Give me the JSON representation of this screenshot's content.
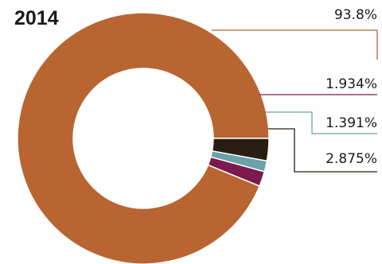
{
  "chart_data": {
    "type": "pie",
    "title": "2014",
    "donut": true,
    "start_angle_deg": 0,
    "direction": "counterclockwise",
    "slices": [
      {
        "label": "93.8%",
        "value": 93.8,
        "color": "#b86532"
      },
      {
        "label": "1.934%",
        "value": 1.934,
        "color": "#7d1a4d"
      },
      {
        "label": "1.391%",
        "value": 1.391,
        "color": "#6aa1ab"
      },
      {
        "label": "2.875%",
        "value": 2.875,
        "color": "#2a1e14"
      }
    ]
  }
}
